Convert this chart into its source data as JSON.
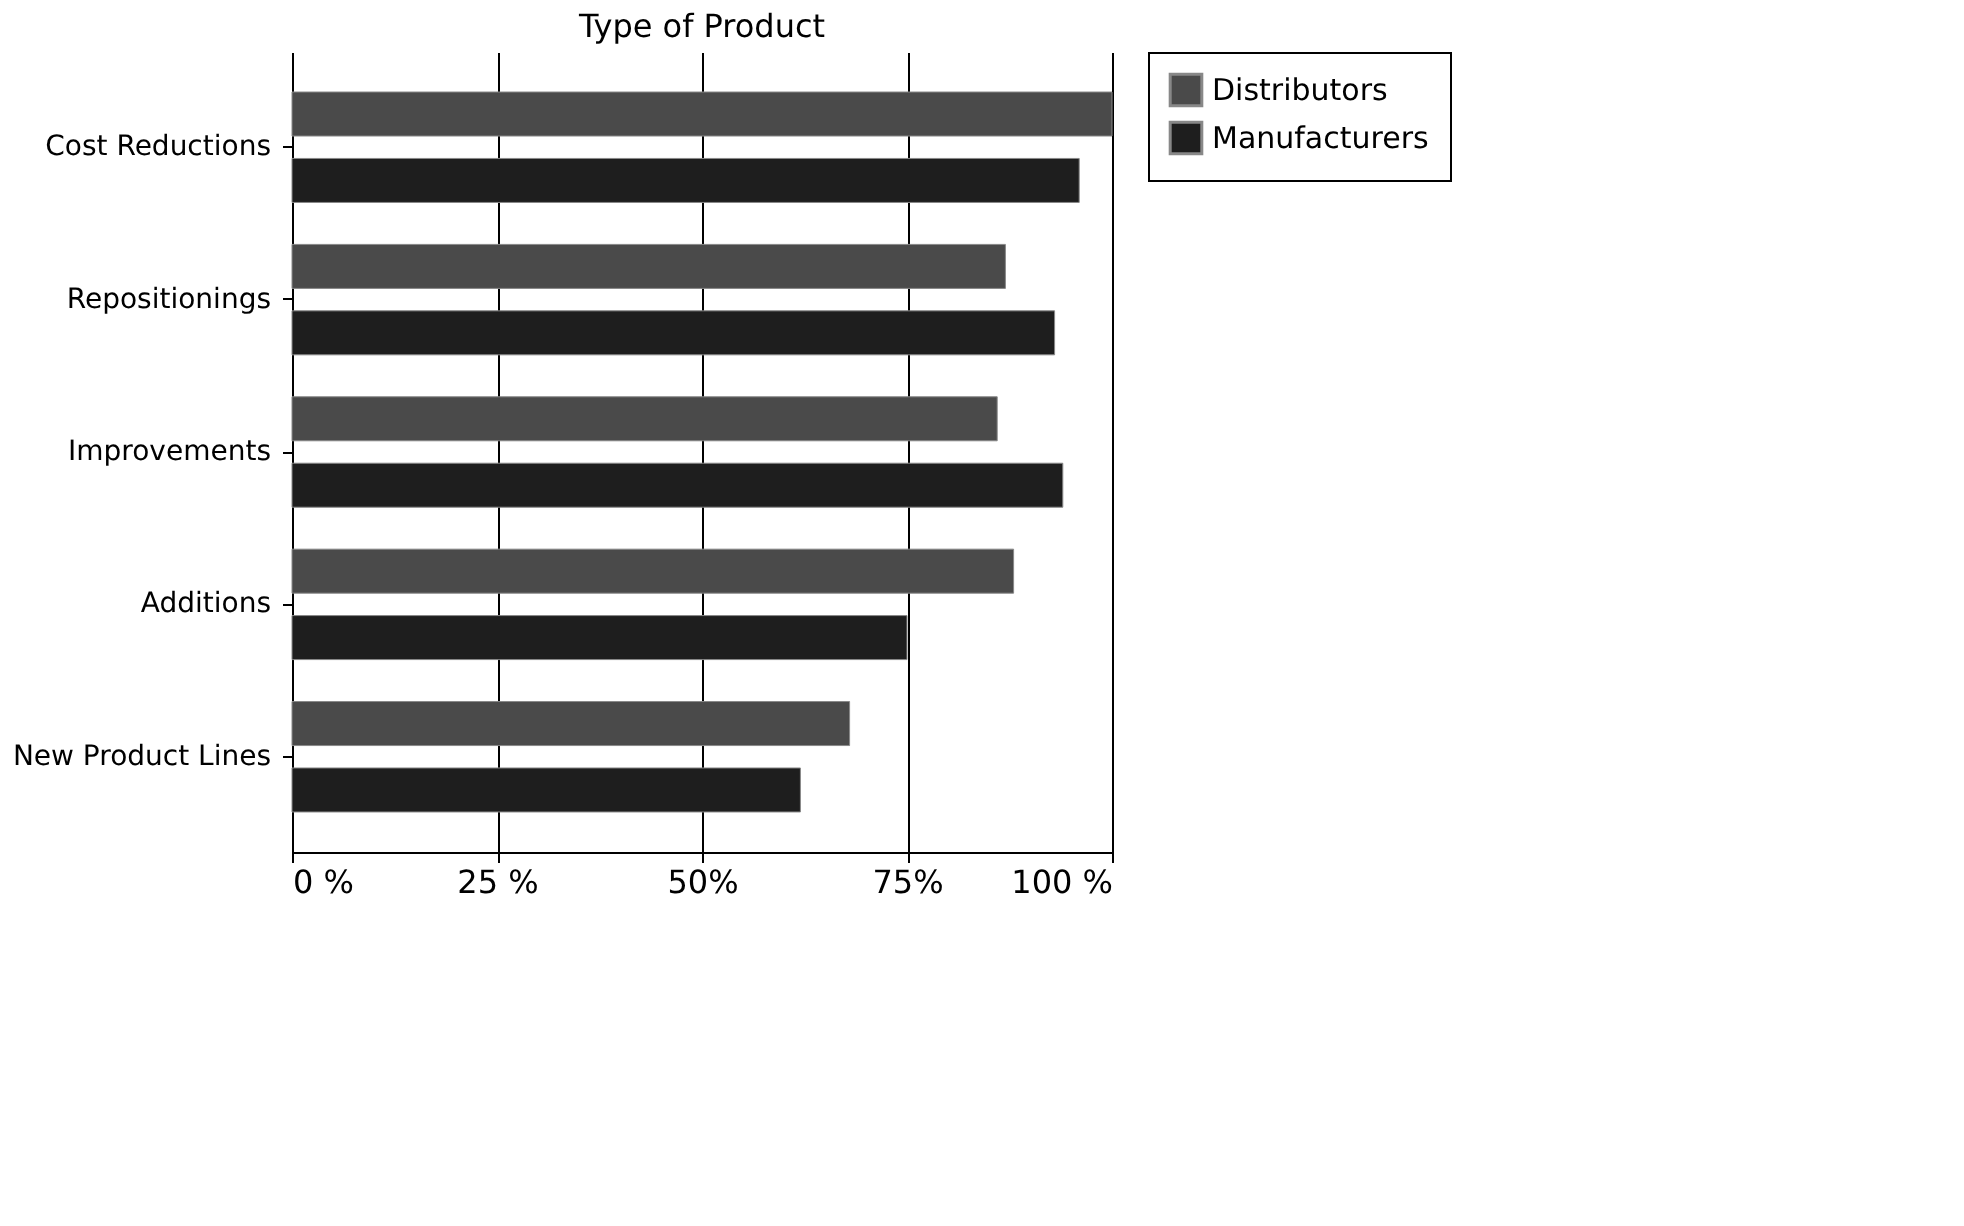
{
  "chart_data": {
    "type": "bar",
    "orientation": "horizontal",
    "title": "Type of Product",
    "categories": [
      "Cost Reductions",
      "Repositionings",
      "Improvements",
      "Additions",
      "New Product Lines"
    ],
    "series": [
      {
        "name": "Distributors",
        "color": "#4a4a4a",
        "values": [
          100,
          87,
          86,
          88,
          68
        ]
      },
      {
        "name": "Manufacturers",
        "color": "#1e1e1e",
        "values": [
          96,
          93,
          94,
          75,
          62
        ]
      }
    ],
    "xlim": [
      0,
      100
    ],
    "xticks": [
      {
        "value": 0,
        "label": "0 %"
      },
      {
        "value": 25,
        "label": "25 %"
      },
      {
        "value": 50,
        "label": "50%"
      },
      {
        "value": 75,
        "label": "75%"
      },
      {
        "value": 100,
        "label": "100 %"
      }
    ],
    "grid": "x",
    "legend": "right"
  }
}
